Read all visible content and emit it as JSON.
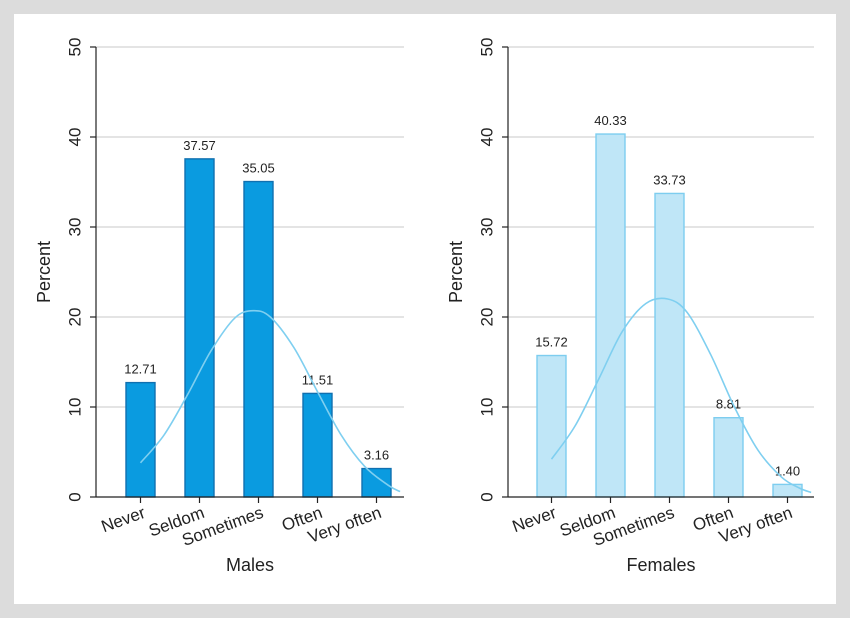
{
  "chart_data": [
    {
      "type": "bar",
      "title": "",
      "xlabel": "Males",
      "ylabel": "Percent",
      "ylim": [
        0,
        50
      ],
      "yticks": [
        0,
        10,
        20,
        30,
        40,
        50
      ],
      "grid": true,
      "categories": [
        "Never",
        "Seldom",
        "Sometimes",
        "Often",
        "Very often"
      ],
      "values": [
        12.71,
        37.57,
        35.05,
        11.51,
        3.16
      ],
      "value_labels": [
        "12.71",
        "37.57",
        "35.05",
        "11.51",
        "3.16"
      ],
      "bar_color": "#0a9be0",
      "bar_edge": "#1070b0",
      "curve": {
        "type": "normal-density-overlay",
        "color": "#7fcff0",
        "x": [
          0.0,
          0.4,
          0.8,
          1.2,
          1.6,
          1.91,
          2.2,
          2.6,
          3.0,
          3.4,
          3.8,
          4.2,
          4.4
        ],
        "y": [
          3.8,
          6.9,
          11.4,
          16.3,
          19.9,
          20.7,
          20.0,
          16.6,
          11.7,
          6.9,
          3.4,
          1.3,
          0.6
        ]
      }
    },
    {
      "type": "bar",
      "title": "",
      "xlabel": "Females",
      "ylabel": "Percent",
      "ylim": [
        0,
        50
      ],
      "yticks": [
        0,
        10,
        20,
        30,
        40,
        50
      ],
      "grid": true,
      "categories": [
        "Never",
        "Seldom",
        "Sometimes",
        "Often",
        "Very often"
      ],
      "values": [
        15.72,
        40.33,
        33.73,
        8.81,
        1.4
      ],
      "value_labels": [
        "15.72",
        "40.33",
        "33.73",
        "8.81",
        "1.40"
      ],
      "bar_color": "#bfe6f7",
      "bar_edge": "#7dcdef",
      "curve": {
        "type": "normal-density-overlay",
        "color": "#7fcff0",
        "x": [
          0.0,
          0.4,
          0.8,
          1.2,
          1.6,
          1.97,
          2.3,
          2.7,
          3.1,
          3.5,
          3.9,
          4.2,
          4.4
        ],
        "y": [
          4.2,
          7.9,
          13.1,
          18.4,
          21.5,
          22.0,
          20.5,
          15.8,
          10.0,
          5.2,
          2.2,
          1.0,
          0.5
        ]
      }
    }
  ]
}
